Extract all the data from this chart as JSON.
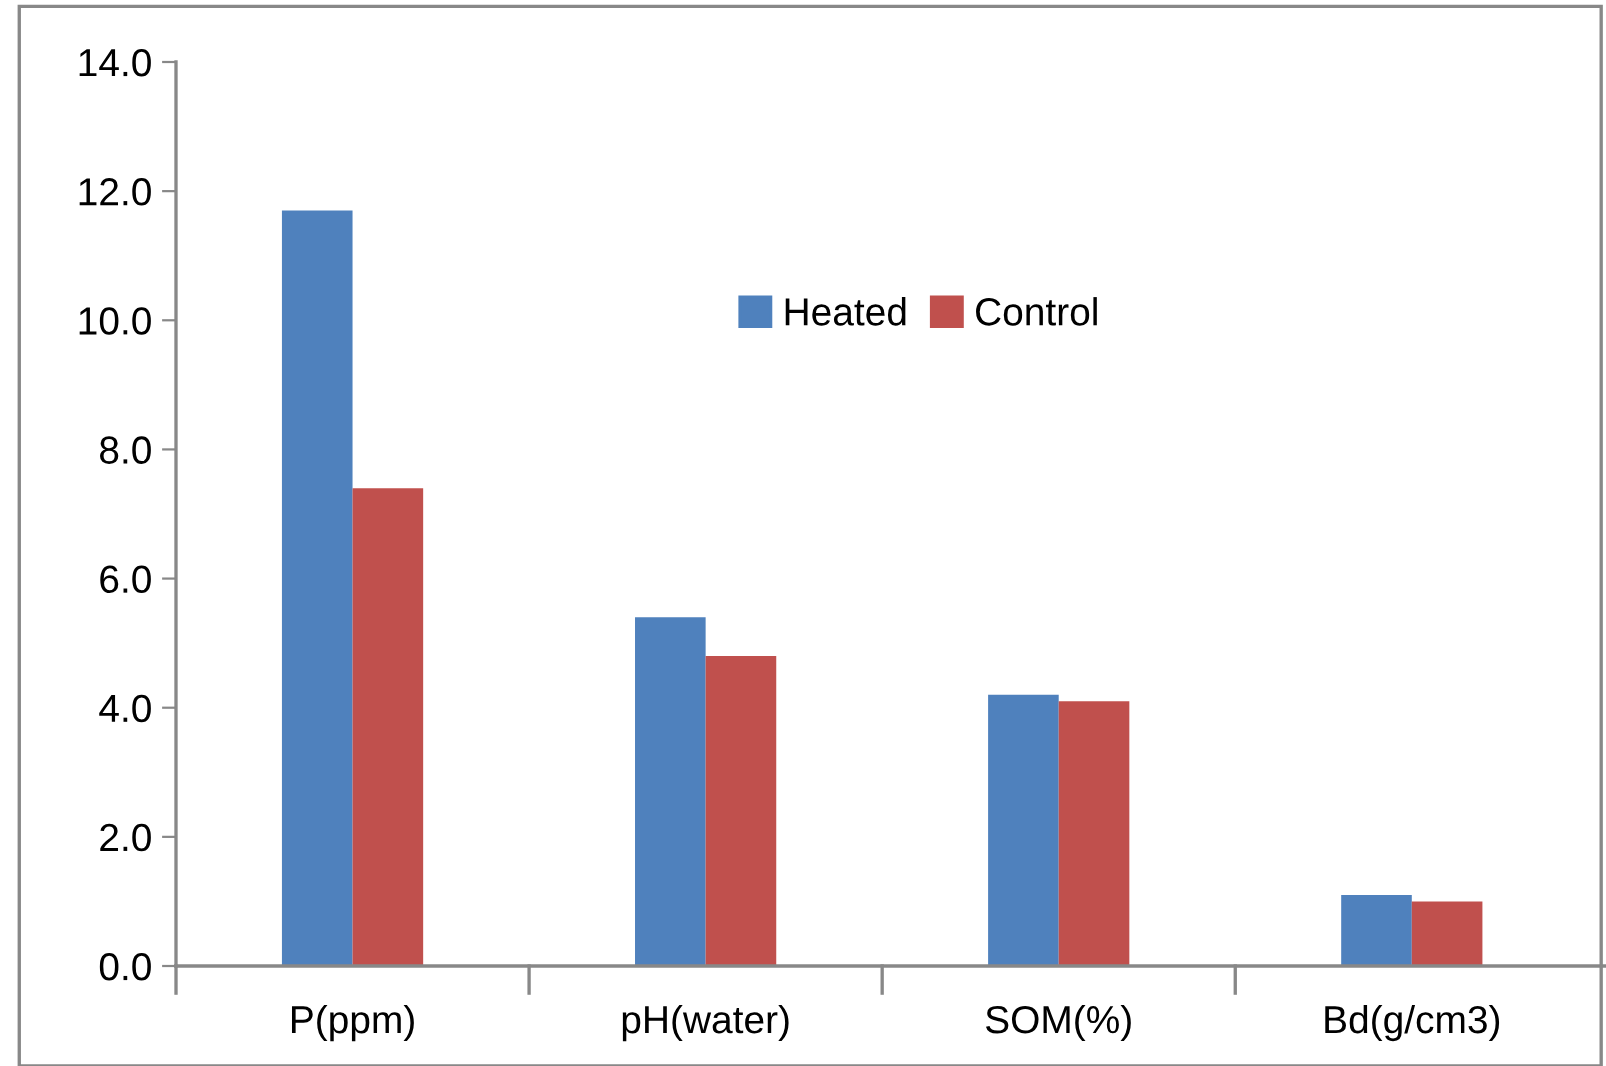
{
  "chart_data": {
    "type": "bar",
    "categories": [
      "P(ppm)",
      "pH(water)",
      "SOM(%)",
      "Bd(g/cm3)"
    ],
    "series": [
      {
        "name": "Heated",
        "color": "#4f81bd",
        "values": [
          11.7,
          5.4,
          4.2,
          1.1
        ]
      },
      {
        "name": "Control",
        "color": "#c0504d",
        "values": [
          7.4,
          4.8,
          4.1,
          1.0
        ]
      }
    ],
    "ylim": [
      0,
      14
    ],
    "yticks": [
      {
        "value": 0,
        "label": "0.0"
      },
      {
        "value": 2,
        "label": "2.0"
      },
      {
        "value": 4,
        "label": "4.0"
      },
      {
        "value": 6,
        "label": "6.0"
      },
      {
        "value": 8,
        "label": "8.0"
      },
      {
        "value": 10,
        "label": "10.0"
      },
      {
        "value": 12,
        "label": "12.0"
      },
      {
        "value": 14,
        "label": "14.0"
      }
    ],
    "grid": false,
    "legend": "top"
  }
}
